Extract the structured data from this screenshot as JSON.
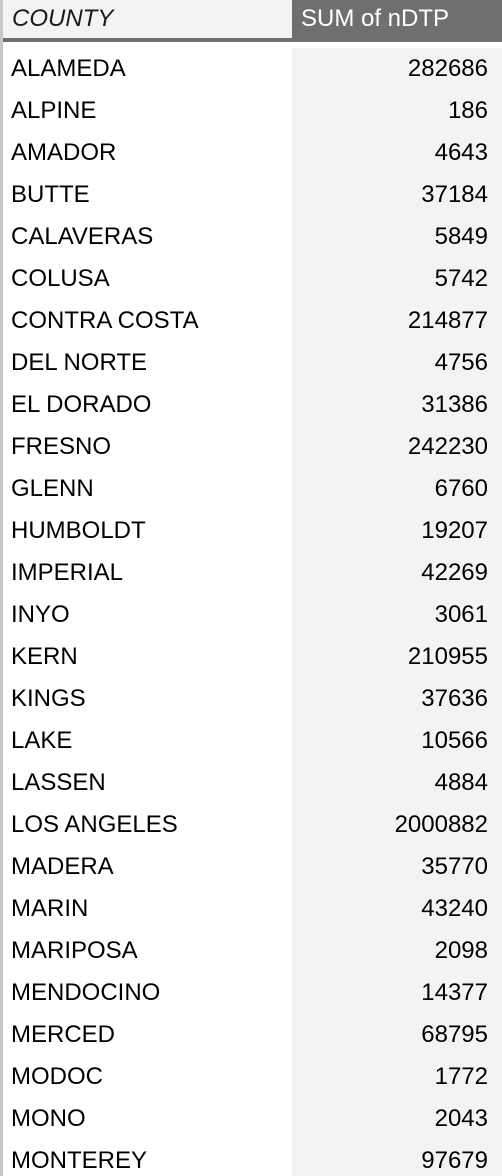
{
  "header": {
    "county_label": "COUNTY",
    "sum_label": "SUM of nDTP"
  },
  "rows": [
    {
      "county": "ALAMEDA",
      "sum": "282686"
    },
    {
      "county": "ALPINE",
      "sum": "186"
    },
    {
      "county": "AMADOR",
      "sum": "4643"
    },
    {
      "county": "BUTTE",
      "sum": "37184"
    },
    {
      "county": "CALAVERAS",
      "sum": "5849"
    },
    {
      "county": "COLUSA",
      "sum": "5742"
    },
    {
      "county": "CONTRA COSTA",
      "sum": "214877"
    },
    {
      "county": "DEL NORTE",
      "sum": "4756"
    },
    {
      "county": "EL DORADO",
      "sum": "31386"
    },
    {
      "county": "FRESNO",
      "sum": "242230"
    },
    {
      "county": "GLENN",
      "sum": "6760"
    },
    {
      "county": "HUMBOLDT",
      "sum": "19207"
    },
    {
      "county": "IMPERIAL",
      "sum": "42269"
    },
    {
      "county": "INYO",
      "sum": "3061"
    },
    {
      "county": "KERN",
      "sum": "210955"
    },
    {
      "county": "KINGS",
      "sum": "37636"
    },
    {
      "county": "LAKE",
      "sum": "10566"
    },
    {
      "county": "LASSEN",
      "sum": "4884"
    },
    {
      "county": "LOS ANGELES",
      "sum": "2000882"
    },
    {
      "county": "MADERA",
      "sum": "35770"
    },
    {
      "county": "MARIN",
      "sum": "43240"
    },
    {
      "county": "MARIPOSA",
      "sum": "2098"
    },
    {
      "county": "MENDOCINO",
      "sum": "14377"
    },
    {
      "county": "MERCED",
      "sum": "68795"
    },
    {
      "county": "MODOC",
      "sum": "1772"
    },
    {
      "county": "MONO",
      "sum": "2043"
    },
    {
      "county": "MONTEREY",
      "sum": "97679"
    }
  ]
}
